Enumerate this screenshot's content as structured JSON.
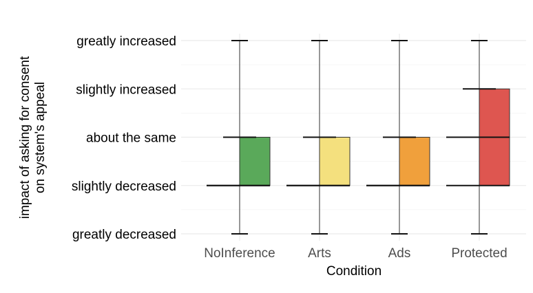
{
  "chart_data": {
    "type": "boxplot",
    "title": "",
    "xlabel": "Condition",
    "ylabel_lines": [
      "impact of asking for consent",
      "on system's appeal"
    ],
    "y_levels": [
      "greatly decreased",
      "slightly decreased",
      "about the same",
      "slightly increased",
      "greatly increased"
    ],
    "categories": [
      "NoInference",
      "Arts",
      "Ads",
      "Protected"
    ],
    "series": [
      {
        "category": "NoInference",
        "whisker_low": 1,
        "q1": 2,
        "median": 2,
        "q3": 3,
        "whisker_high": 5,
        "color": "#5aa95a"
      },
      {
        "category": "Arts",
        "whisker_low": 1,
        "q1": 2,
        "median": 2,
        "q3": 3,
        "whisker_high": 5,
        "color": "#f4e07e"
      },
      {
        "category": "Ads",
        "whisker_low": 1,
        "q1": 2,
        "median": 2,
        "q3": 3,
        "whisker_high": 5,
        "color": "#f0a03c"
      },
      {
        "category": "Protected",
        "whisker_low": 1,
        "q1": 2,
        "median": 3,
        "q3": 4,
        "whisker_high": 5,
        "color": "#de5650"
      }
    ],
    "ylim": [
      1,
      5
    ],
    "grid": true,
    "legend": "none"
  }
}
